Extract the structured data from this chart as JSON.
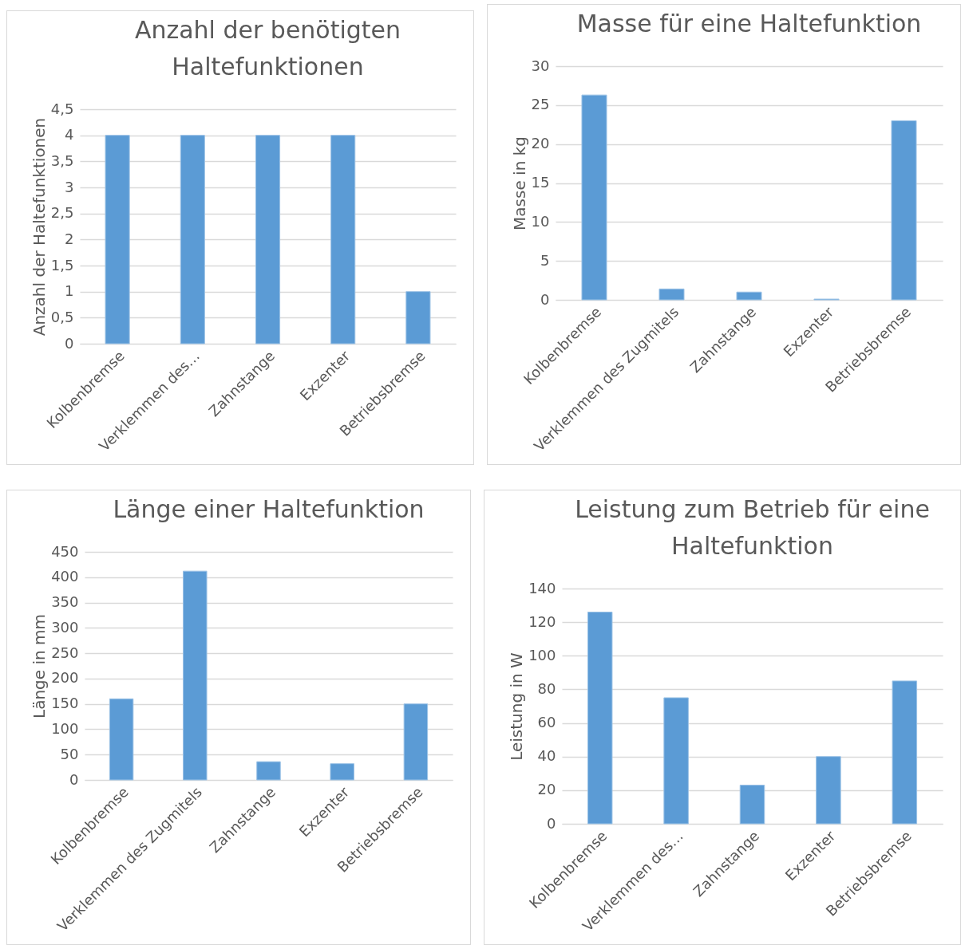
{
  "chart_data": [
    {
      "type": "bar",
      "title": "Anzahl der benötigten Haltefunktionen",
      "ylabel": "Anzahl der Haltefunktionen",
      "categories": [
        "Kolbenbremse",
        "Verklemmen des…",
        "Zahnstange",
        "Exzenter",
        "Betriebsbremse"
      ],
      "values": [
        4,
        4,
        4,
        4,
        1
      ],
      "color": "#5b9bd5",
      "ylim": [
        0,
        4.5
      ],
      "yticks": [
        0,
        {
          "value": 0.5,
          "label": "0,5"
        },
        1,
        {
          "value": 1.5,
          "label": "1,5"
        },
        2,
        {
          "value": 2.5,
          "label": "2,5"
        },
        3,
        {
          "value": 3.5,
          "label": "3,5"
        },
        4,
        {
          "value": 4.5,
          "label": "4,5"
        }
      ],
      "grid": "y"
    },
    {
      "type": "bar",
      "title": "Masse für eine Haltefunktion",
      "ylabel": "Masse in kg",
      "categories": [
        "Kolbenbremse",
        "Verklemmen des Zugmitels",
        "Zahnstange",
        "Exzenter",
        "Betriebsbremse"
      ],
      "values": [
        26.3,
        1.4,
        1.0,
        0.1,
        23
      ],
      "color": "#5b9bd5",
      "ylim": [
        0,
        30
      ],
      "yticks": [
        0,
        5,
        10,
        15,
        20,
        25,
        30
      ],
      "grid": "y"
    },
    {
      "type": "bar",
      "title": "Länge einer Haltefunktion",
      "ylabel": "Länge in mm",
      "categories": [
        "Kolbenbremse",
        "Verklemmen des Zugmitels",
        "Zahnstange",
        "Exzenter",
        "Betriebsbremse"
      ],
      "values": [
        160,
        412,
        36,
        32,
        150
      ],
      "color": "#5b9bd5",
      "ylim": [
        0,
        450
      ],
      "yticks": [
        0,
        50,
        100,
        150,
        200,
        250,
        300,
        350,
        400,
        450
      ],
      "grid": "y"
    },
    {
      "type": "bar",
      "title": "Leistung zum Betrieb für eine Haltefunktion",
      "ylabel": "Leistung in W",
      "categories": [
        "Kolbenbremse",
        "Verklemmen des…",
        "Zahnstange",
        "Exzenter",
        "Betriebsbremse"
      ],
      "values": [
        126,
        75,
        23,
        40,
        85
      ],
      "color": "#5b9bd5",
      "ylim": [
        0,
        140
      ],
      "yticks": [
        0,
        20,
        40,
        60,
        80,
        100,
        120,
        140
      ],
      "grid": "y"
    }
  ]
}
